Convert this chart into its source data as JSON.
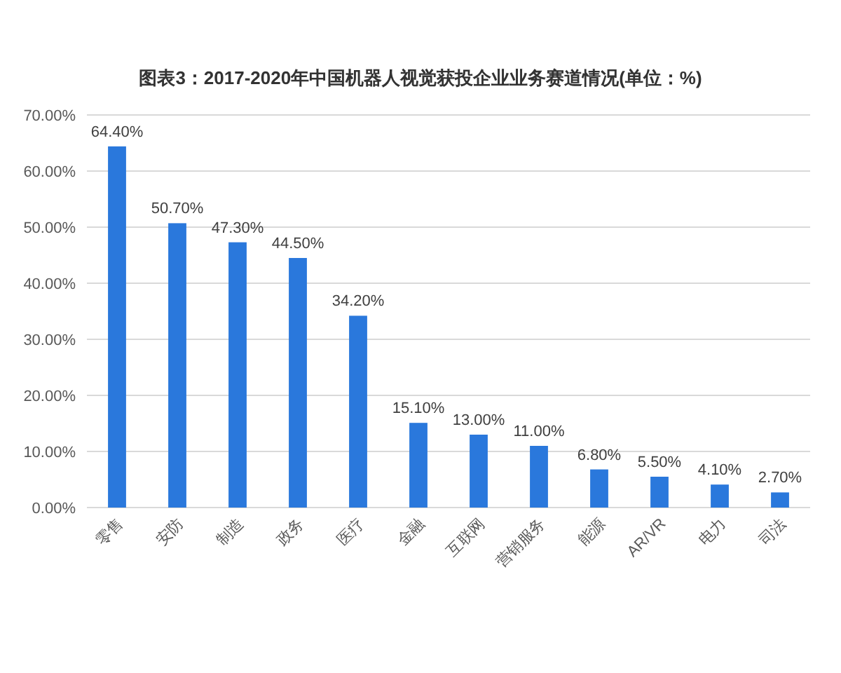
{
  "chart_data": {
    "type": "bar",
    "title": "图表3：2017-2020年中国机器人视觉获投企业业务赛道情况(单位：%)",
    "categories": [
      "零售",
      "安防",
      "制造",
      "政务",
      "医疗",
      "金融",
      "互联网",
      "营销服务",
      "能源",
      "AR/VR",
      "电力",
      "司法"
    ],
    "values": [
      64.4,
      50.7,
      47.3,
      44.5,
      34.2,
      15.1,
      13.0,
      11.0,
      6.8,
      5.5,
      4.1,
      2.7
    ],
    "value_labels": [
      "64.40%",
      "50.70%",
      "47.30%",
      "44.50%",
      "34.20%",
      "15.10%",
      "13.00%",
      "11.00%",
      "6.80%",
      "5.50%",
      "4.10%",
      "2.70%"
    ],
    "color": "#2a78dc",
    "ylim": [
      0,
      70
    ],
    "yticks": [
      {
        "value": 0,
        "label": "0.00%"
      },
      {
        "value": 10,
        "label": "10.00%"
      },
      {
        "value": 20,
        "label": "20.00%"
      },
      {
        "value": 30,
        "label": "30.00%"
      },
      {
        "value": 40,
        "label": "40.00%"
      },
      {
        "value": 50,
        "label": "50.00%"
      },
      {
        "value": 60,
        "label": "60.00%"
      },
      {
        "value": 70,
        "label": "70.00%"
      }
    ],
    "grid": "y"
  }
}
